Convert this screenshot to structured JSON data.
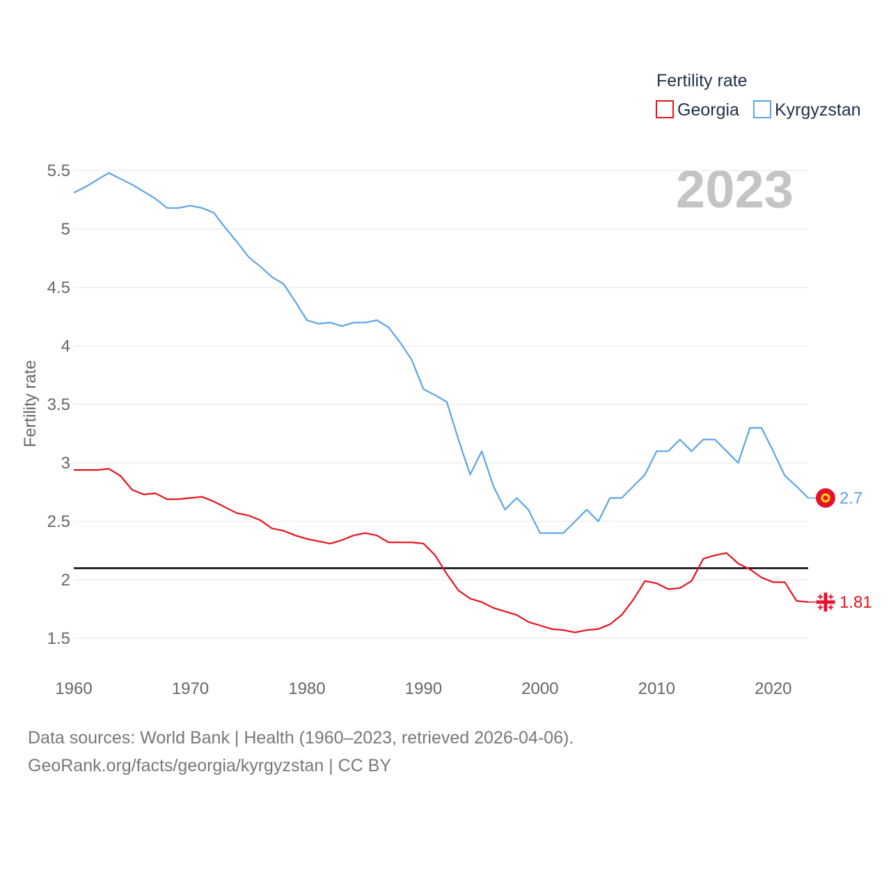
{
  "chart_data": {
    "type": "line",
    "title": "",
    "year_label": "2023",
    "ylabel": "Fertility rate",
    "xlabel": "",
    "xlim": [
      1960,
      2023
    ],
    "ylim": [
      1.25,
      5.55
    ],
    "yticks": [
      1.5,
      2,
      2.5,
      3,
      3.5,
      4,
      4.5,
      5,
      5.5
    ],
    "ytick_labels": [
      "1.5",
      "2",
      "2.5",
      "3",
      "3.5",
      "4",
      "4.5",
      "5",
      "5.5"
    ],
    "xticks": [
      1960,
      1970,
      1980,
      1990,
      2000,
      2010,
      2020
    ],
    "xtick_labels": [
      "1960",
      "1970",
      "1980",
      "1990",
      "2000",
      "2010",
      "2020"
    ],
    "reference_line": {
      "value": 2.1,
      "color": "#000000"
    },
    "legend": {
      "title": "Fertility rate",
      "placement": "top-right"
    },
    "x": [
      1960,
      1961,
      1962,
      1963,
      1964,
      1965,
      1966,
      1967,
      1968,
      1969,
      1970,
      1971,
      1972,
      1973,
      1974,
      1975,
      1976,
      1977,
      1978,
      1979,
      1980,
      1981,
      1982,
      1983,
      1984,
      1985,
      1986,
      1987,
      1988,
      1989,
      1990,
      1991,
      1992,
      1993,
      1994,
      1995,
      1996,
      1997,
      1998,
      1999,
      2000,
      2001,
      2002,
      2003,
      2004,
      2005,
      2006,
      2007,
      2008,
      2009,
      2010,
      2011,
      2012,
      2013,
      2014,
      2015,
      2016,
      2017,
      2018,
      2019,
      2020,
      2021,
      2022,
      2023
    ],
    "series": [
      {
        "name": "Georgia",
        "color": "#e8101c",
        "end_label": "1.81",
        "flag_icon": "georgia-flag-icon",
        "values": [
          2.94,
          2.94,
          2.94,
          2.95,
          2.89,
          2.77,
          2.73,
          2.74,
          2.69,
          2.69,
          2.7,
          2.71,
          2.67,
          2.62,
          2.57,
          2.55,
          2.51,
          2.44,
          2.42,
          2.38,
          2.35,
          2.33,
          2.31,
          2.34,
          2.38,
          2.4,
          2.38,
          2.32,
          2.32,
          2.32,
          2.31,
          2.21,
          2.05,
          1.91,
          1.84,
          1.81,
          1.76,
          1.73,
          1.7,
          1.64,
          1.61,
          1.58,
          1.57,
          1.55,
          1.57,
          1.58,
          1.62,
          1.7,
          1.83,
          1.99,
          1.97,
          1.92,
          1.93,
          1.99,
          2.18,
          2.21,
          2.23,
          2.14,
          2.09,
          2.02,
          1.98,
          1.98,
          1.82,
          1.81
        ]
      },
      {
        "name": "Kyrgyzstan",
        "color": "#5ba4e5",
        "end_label": "2.7",
        "flag_icon": "kyrgyzstan-flag-icon",
        "values": [
          5.31,
          5.36,
          5.42,
          5.48,
          5.43,
          5.38,
          5.32,
          5.26,
          5.18,
          5.18,
          5.2,
          5.18,
          5.14,
          5.01,
          4.89,
          4.76,
          4.68,
          4.59,
          4.53,
          4.38,
          4.22,
          4.19,
          4.2,
          4.17,
          4.2,
          4.2,
          4.22,
          4.16,
          4.03,
          3.88,
          3.63,
          3.58,
          3.52,
          3.2,
          2.9,
          3.1,
          2.8,
          2.6,
          2.7,
          2.6,
          2.4,
          2.4,
          2.4,
          2.5,
          2.6,
          2.5,
          2.7,
          2.7,
          2.8,
          2.9,
          3.1,
          3.1,
          3.2,
          3.1,
          3.2,
          3.2,
          3.1,
          3.0,
          3.3,
          3.3,
          3.1,
          2.89,
          2.8,
          2.7
        ]
      }
    ]
  },
  "footer": {
    "sources": "Data sources: World Bank | Health (1960–2023, retrieved 2026-04-06).",
    "attribution": "GeoRank.org/facts/georgia/kyrgyzstan | CC BY"
  }
}
